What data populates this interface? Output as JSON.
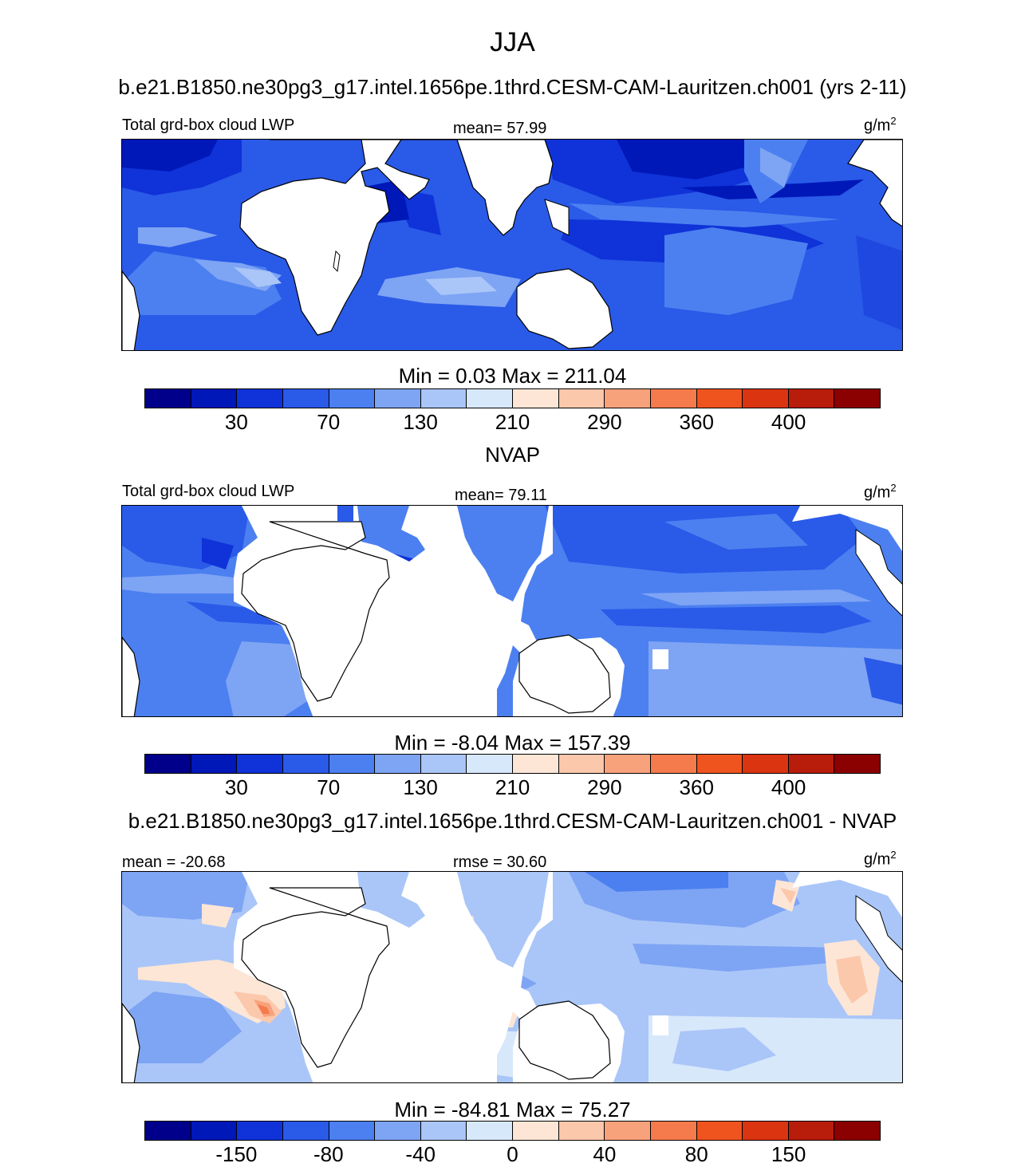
{
  "figure": {
    "season": "JJA",
    "run_title": "b.e21.B1850.ne30pg3_g17.intel.1656pe.1thrd.CESM-CAM-Lauritzen.ch001 (yrs 2-11)",
    "obs_title": "NVAP",
    "diff_title": "b.e21.B1850.ne30pg3_g17.intel.1656pe.1thrd.CESM-CAM-Lauritzen.ch001 - NVAP"
  },
  "panels": [
    {
      "id": "model",
      "left_label": "Total grd-box cloud LWP",
      "center_label": "mean=  57.99",
      "units_base": "g/m",
      "units_exp": "2",
      "minmax": "Min =   0.03 Max = 211.04",
      "colorbar_ticks": [
        "30",
        "70",
        "130",
        "210",
        "290",
        "360",
        "400"
      ],
      "colorbar_colors": [
        "#00008a",
        "#0018b8",
        "#0f33d8",
        "#2a5ae8",
        "#4c80f0",
        "#7ea4f4",
        "#aac6f8",
        "#d8e8fb",
        "#fde6d6",
        "#fbc8ac",
        "#f8a27c",
        "#f57a4c",
        "#f0541e",
        "#da3410",
        "#b81c0a",
        "#8b0000"
      ]
    },
    {
      "id": "obs",
      "left_label": "Total grd-box cloud LWP",
      "center_label": "mean=  79.11",
      "units_base": "g/m",
      "units_exp": "2",
      "minmax": "Min =  -8.04 Max = 157.39",
      "colorbar_ticks": [
        "30",
        "70",
        "130",
        "210",
        "290",
        "360",
        "400"
      ],
      "colorbar_colors": [
        "#00008a",
        "#0018b8",
        "#0f33d8",
        "#2a5ae8",
        "#4c80f0",
        "#7ea4f4",
        "#aac6f8",
        "#d8e8fb",
        "#fde6d6",
        "#fbc8ac",
        "#f8a27c",
        "#f57a4c",
        "#f0541e",
        "#da3410",
        "#b81c0a",
        "#8b0000"
      ]
    },
    {
      "id": "diff",
      "left_label": "mean = -20.68",
      "center_label": "rmse =  30.60",
      "units_base": "g/m",
      "units_exp": "2",
      "minmax": "Min = -84.81 Max =  75.27",
      "colorbar_ticks": [
        "-150",
        "-80",
        "-40",
        "0",
        "40",
        "80",
        "150"
      ],
      "colorbar_colors": [
        "#00008a",
        "#0018b8",
        "#0f33d8",
        "#2a5ae8",
        "#4c80f0",
        "#7ea4f4",
        "#aac6f8",
        "#d8e8fb",
        "#fde6d6",
        "#fbc8ac",
        "#f8a27c",
        "#f57a4c",
        "#f0541e",
        "#da3410",
        "#b81c0a",
        "#8b0000"
      ]
    }
  ]
}
